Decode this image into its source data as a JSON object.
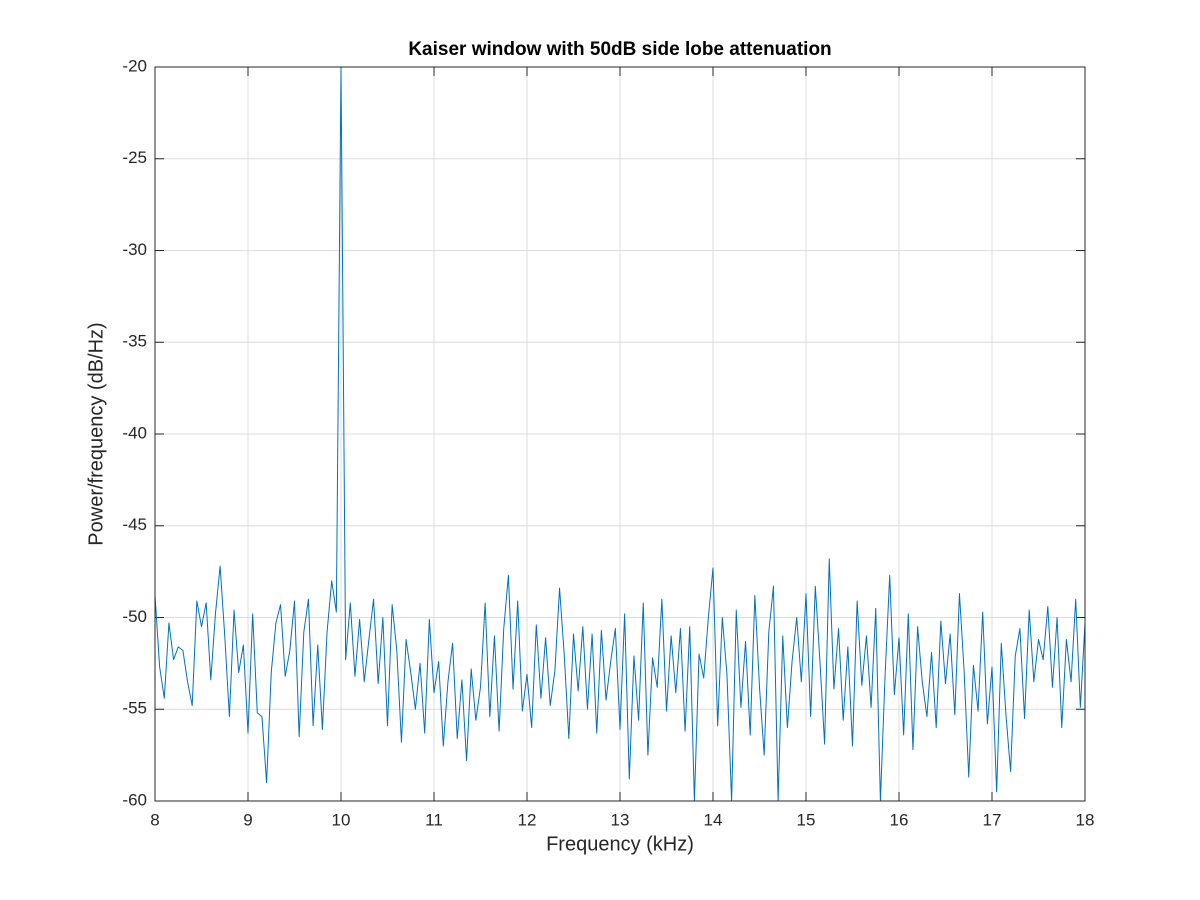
{
  "chart_data": {
    "type": "line",
    "title": "Kaiser window with 50dB side lobe attenuation",
    "xlabel": "Frequency (kHz)",
    "ylabel": "Power/frequency (dB/Hz)",
    "color": "#0072bd",
    "grid": true,
    "xlim": [
      8,
      18
    ],
    "ylim": [
      -60,
      -20
    ],
    "xticks": [
      8,
      9,
      10,
      11,
      12,
      13,
      14,
      15,
      16,
      17,
      18
    ],
    "yticks": [
      -60,
      -55,
      -50,
      -45,
      -40,
      -35,
      -30,
      -25,
      -20
    ],
    "x": [
      8,
      8.05,
      8.1,
      8.15,
      8.2,
      8.25,
      8.3,
      8.35,
      8.4,
      8.45,
      8.5,
      8.55,
      8.6,
      8.65,
      8.7,
      8.75,
      8.8,
      8.85,
      8.9,
      8.95,
      9,
      9.05,
      9.1,
      9.15,
      9.2,
      9.25,
      9.3,
      9.35,
      9.4,
      9.45,
      9.5,
      9.55,
      9.6,
      9.65,
      9.7,
      9.75,
      9.8,
      9.85,
      9.9,
      9.95,
      10,
      10.05,
      10.1,
      10.15,
      10.2,
      10.25,
      10.3,
      10.35,
      10.4,
      10.45,
      10.5,
      10.55,
      10.6,
      10.65,
      10.7,
      10.75,
      10.8,
      10.85,
      10.9,
      10.95,
      11,
      11.05,
      11.1,
      11.15,
      11.2,
      11.25,
      11.3,
      11.35,
      11.4,
      11.45,
      11.5,
      11.55,
      11.6,
      11.65,
      11.7,
      11.75,
      11.8,
      11.85,
      11.9,
      11.95,
      12,
      12.05,
      12.1,
      12.15,
      12.2,
      12.25,
      12.3,
      12.35,
      12.4,
      12.45,
      12.5,
      12.55,
      12.6,
      12.65,
      12.7,
      12.75,
      12.8,
      12.85,
      12.9,
      12.95,
      13,
      13.05,
      13.1,
      13.15,
      13.2,
      13.25,
      13.3,
      13.35,
      13.4,
      13.45,
      13.5,
      13.55,
      13.6,
      13.65,
      13.7,
      13.75,
      13.8,
      13.85,
      13.9,
      13.95,
      14,
      14.05,
      14.1,
      14.15,
      14.2,
      14.25,
      14.3,
      14.35,
      14.4,
      14.45,
      14.5,
      14.55,
      14.6,
      14.65,
      14.7,
      14.75,
      14.8,
      14.85,
      14.9,
      14.95,
      15,
      15.05,
      15.1,
      15.15,
      15.2,
      15.25,
      15.3,
      15.35,
      15.4,
      15.45,
      15.5,
      15.55,
      15.6,
      15.65,
      15.7,
      15.75,
      15.8,
      15.85,
      15.9,
      15.95,
      16,
      16.05,
      16.1,
      16.15,
      16.2,
      16.25,
      16.3,
      16.35,
      16.4,
      16.45,
      16.5,
      16.55,
      16.6,
      16.65,
      16.7,
      16.75,
      16.8,
      16.85,
      16.9,
      16.95,
      17,
      17.05,
      17.1,
      17.15,
      17.2,
      17.25,
      17.3,
      17.35,
      17.4,
      17.45,
      17.5,
      17.55,
      17.6,
      17.65,
      17.7,
      17.75,
      17.8,
      17.85,
      17.9,
      17.95,
      18
    ],
    "values": [
      -48.8,
      -52.7,
      -54.4,
      -50.3,
      -52.3,
      -51.6,
      -51.8,
      -53.5,
      -54.8,
      -49.1,
      -50.5,
      -49.2,
      -53.4,
      -49.8,
      -47.2,
      -51.0,
      -55.4,
      -49.6,
      -53.0,
      -51.5,
      -56.3,
      -49.8,
      -55.2,
      -55.4,
      -59.0,
      -53.0,
      -50.3,
      -49.3,
      -53.2,
      -51.8,
      -49.1,
      -56.5,
      -50.8,
      -49.0,
      -55.9,
      -51.5,
      -56.1,
      -50.8,
      -48.0,
      -49.7,
      -20.0,
      -52.3,
      -49.2,
      -53.2,
      -50.1,
      -53.5,
      -51.2,
      -49.0,
      -53.6,
      -50.0,
      -55.9,
      -49.3,
      -51.8,
      -56.8,
      -51.2,
      -53.0,
      -55.0,
      -52.5,
      -56.3,
      -50.1,
      -54.1,
      -52.4,
      -57.0,
      -53.5,
      -51.4,
      -56.6,
      -53.4,
      -57.8,
      -52.8,
      -55.6,
      -53.8,
      -49.2,
      -55.4,
      -51.0,
      -56.2,
      -50.6,
      -47.7,
      -53.9,
      -49.1,
      -55.1,
      -53.1,
      -56.0,
      -50.4,
      -54.4,
      -51.1,
      -54.8,
      -52.9,
      -48.4,
      -52.0,
      -56.6,
      -50.9,
      -54.0,
      -50.5,
      -55.0,
      -50.9,
      -56.3,
      -50.7,
      -54.5,
      -52.4,
      -50.6,
      -56.1,
      -49.8,
      -58.8,
      -52.1,
      -55.6,
      -49.2,
      -57.5,
      -52.2,
      -53.8,
      -49.0,
      -55.1,
      -51.0,
      -54.1,
      -50.6,
      -56.2,
      -50.5,
      -60.0,
      -52.0,
      -53.3,
      -50.0,
      -47.3,
      -55.9,
      -50.0,
      -53.1,
      -60.0,
      -49.6,
      -54.9,
      -51.3,
      -56.4,
      -48.8,
      -53.8,
      -57.5,
      -50.8,
      -48.3,
      -60.0,
      -51.0,
      -56.0,
      -52.4,
      -50.0,
      -53.5,
      -48.7,
      -55.4,
      -48.3,
      -52.4,
      -56.9,
      -46.8,
      -53.9,
      -50.6,
      -55.6,
      -51.6,
      -57.0,
      -49.1,
      -53.7,
      -51.0,
      -54.9,
      -49.5,
      -60.0,
      -53.2,
      -47.7,
      -54.2,
      -51.1,
      -56.4,
      -49.8,
      -57.2,
      -50.5,
      -53.5,
      -55.4,
      -51.9,
      -56.0,
      -50.2,
      -53.6,
      -50.9,
      -55.3,
      -48.7,
      -52.9,
      -58.7,
      -52.6,
      -55.1,
      -49.7,
      -55.8,
      -52.7,
      -59.5,
      -51.4,
      -55.3,
      -58.4,
      -52.1,
      -50.6,
      -55.5,
      -49.6,
      -53.5,
      -51.2,
      -52.3,
      -49.4,
      -53.8,
      -50.0,
      -56.0,
      -51.2,
      -53.5,
      -49.0,
      -54.9,
      -50.3
    ]
  }
}
